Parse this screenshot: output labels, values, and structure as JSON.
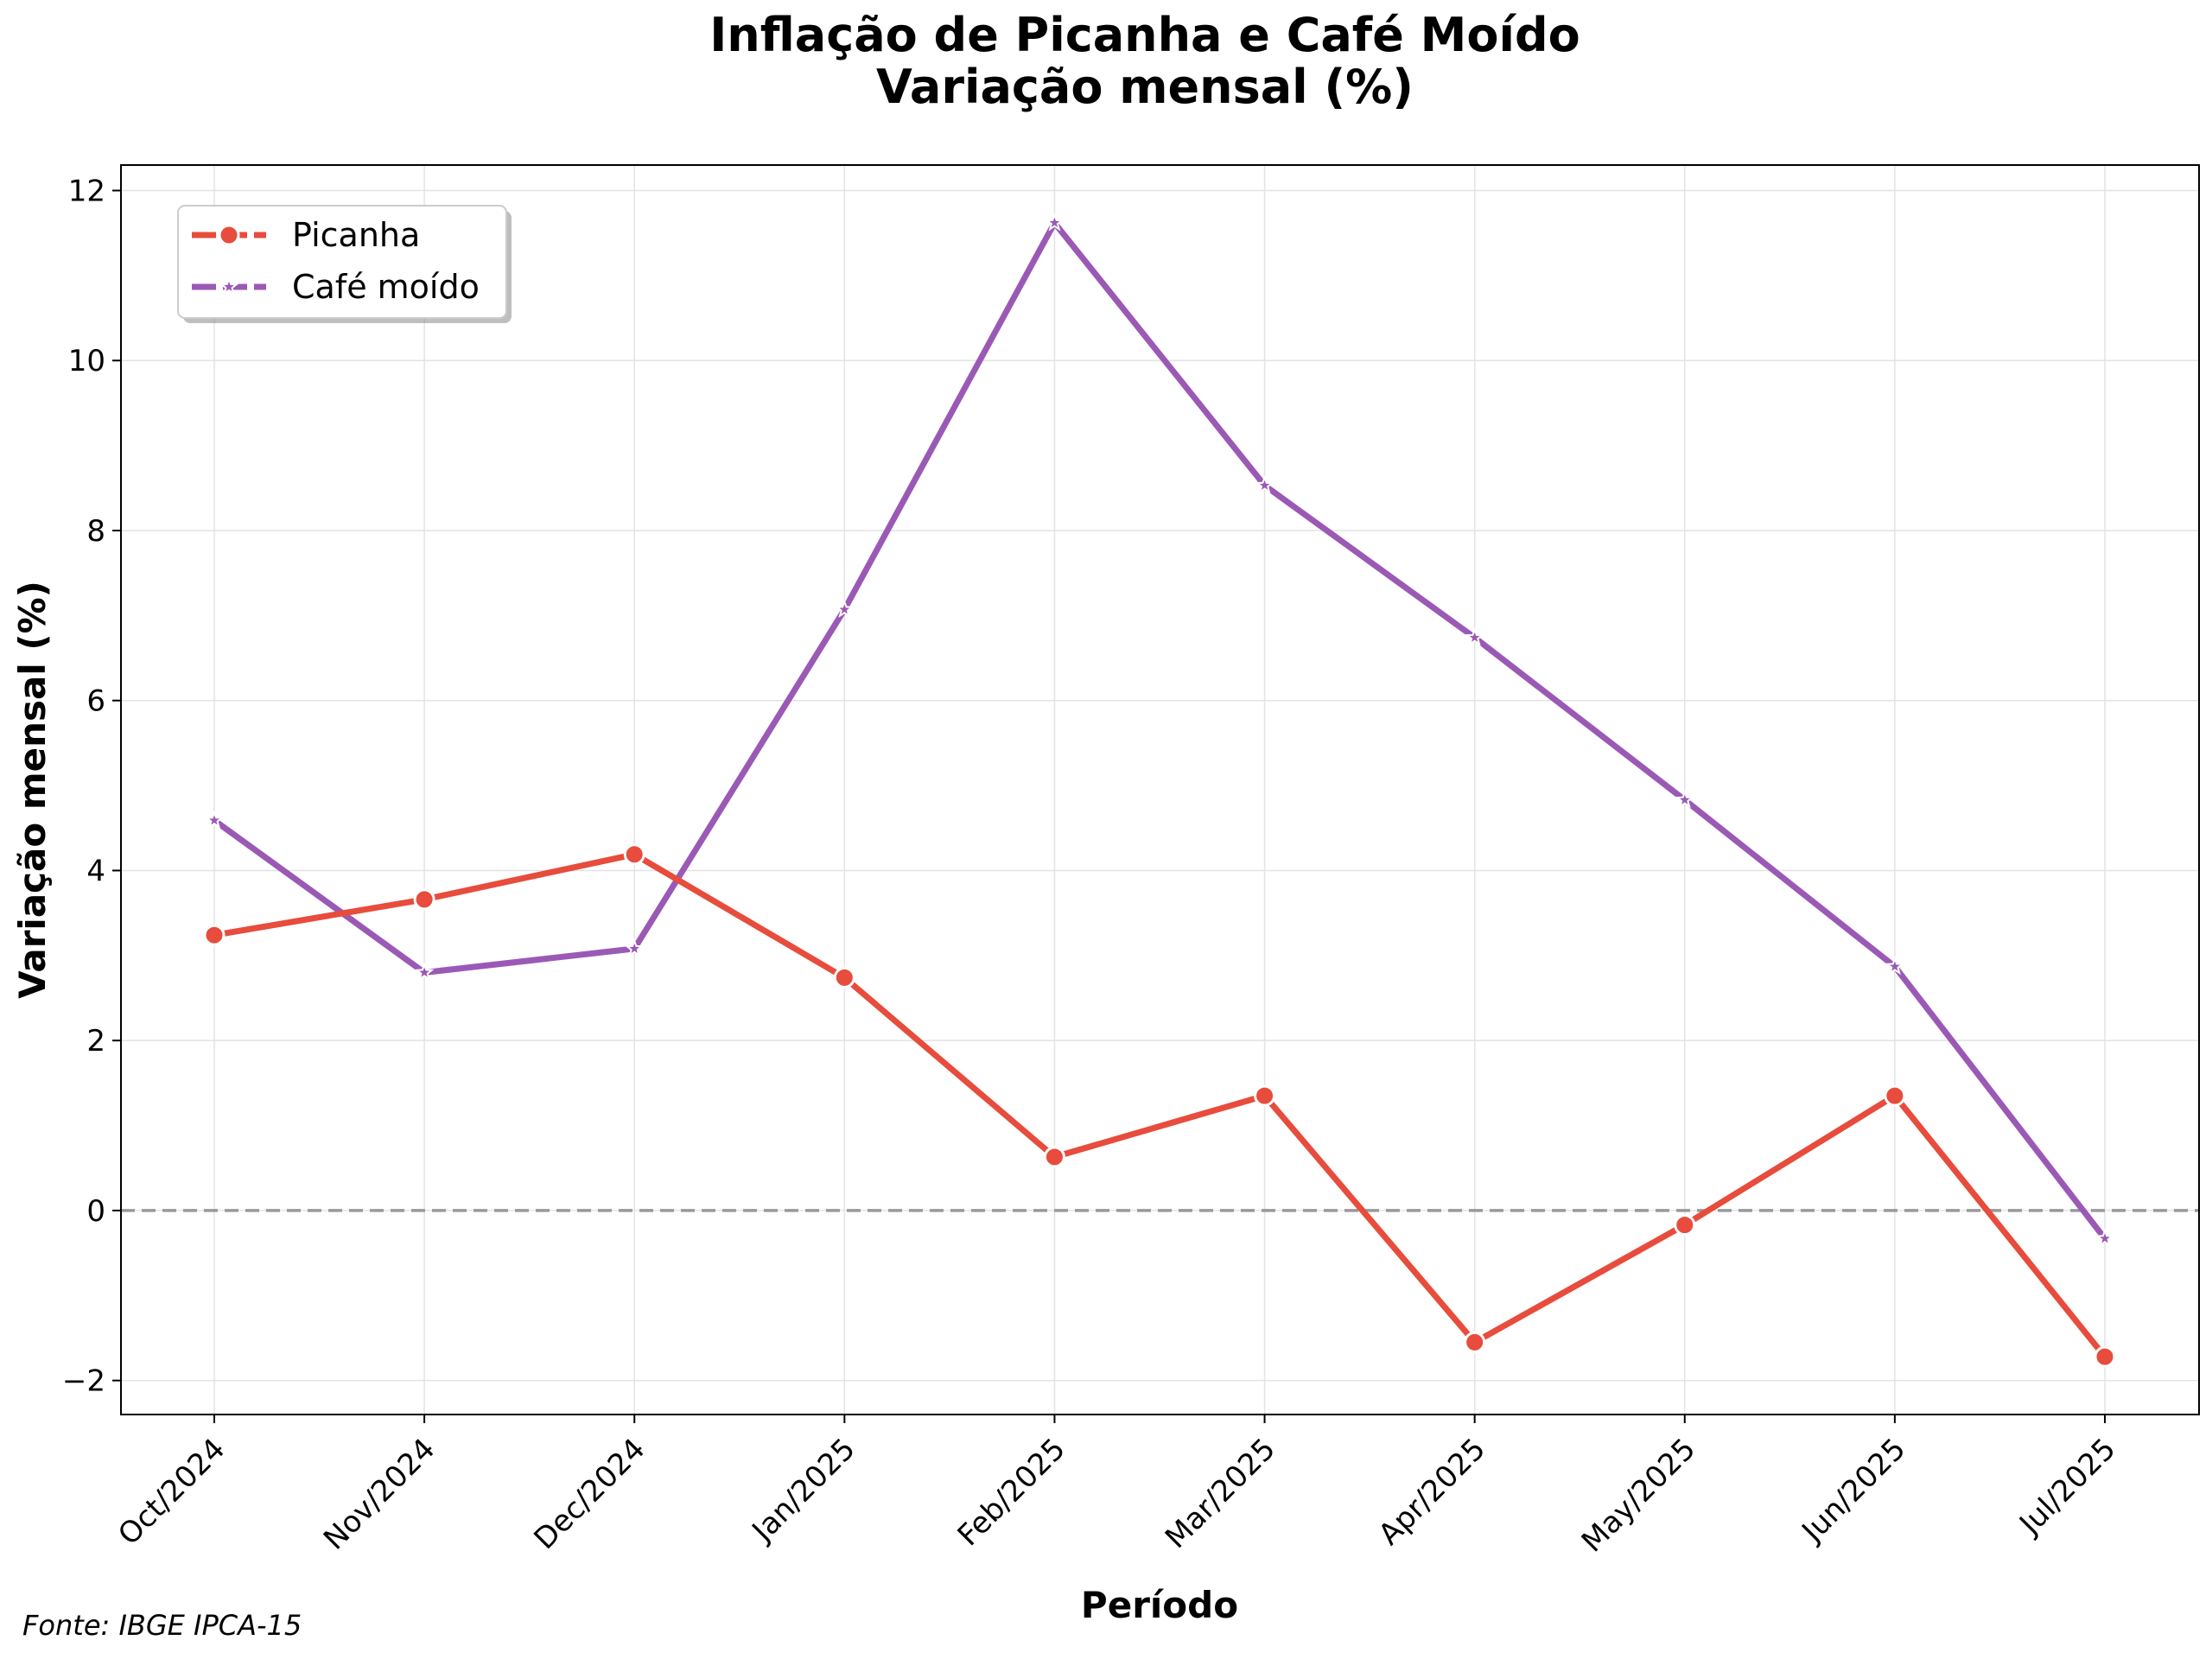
{
  "chart_data": {
    "type": "line",
    "title": "Inflação de Picanha e Café Moído",
    "subtitle": "Variação mensal (%)",
    "xlabel": "Período",
    "ylabel": "Variação mensal (%)",
    "categories": [
      "Oct/2024",
      "Nov/2024",
      "Dec/2024",
      "Jan/2025",
      "Feb/2025",
      "Mar/2025",
      "Apr/2025",
      "May/2025",
      "Jun/2025",
      "Jul/2025"
    ],
    "ylim": [
      -2.4,
      12.3
    ],
    "yticks": [
      -2,
      0,
      2,
      4,
      6,
      8,
      10,
      12
    ],
    "grid": true,
    "zero_line": "dashed-gray",
    "legend_position": "top-left",
    "series": [
      {
        "name": "Picanha",
        "color": "#e74c3c",
        "marker": "circle",
        "values": [
          3.24,
          3.66,
          4.19,
          2.74,
          0.63,
          1.35,
          -1.55,
          -0.17,
          1.35,
          -1.72
        ]
      },
      {
        "name": "Café moído",
        "color": "#9b59b6",
        "marker": "star",
        "values": [
          4.59,
          2.8,
          3.08,
          7.07,
          11.62,
          8.53,
          6.74,
          4.83,
          2.87,
          -0.33
        ]
      }
    ]
  },
  "source": "Fonte: IBGE IPCA-15"
}
